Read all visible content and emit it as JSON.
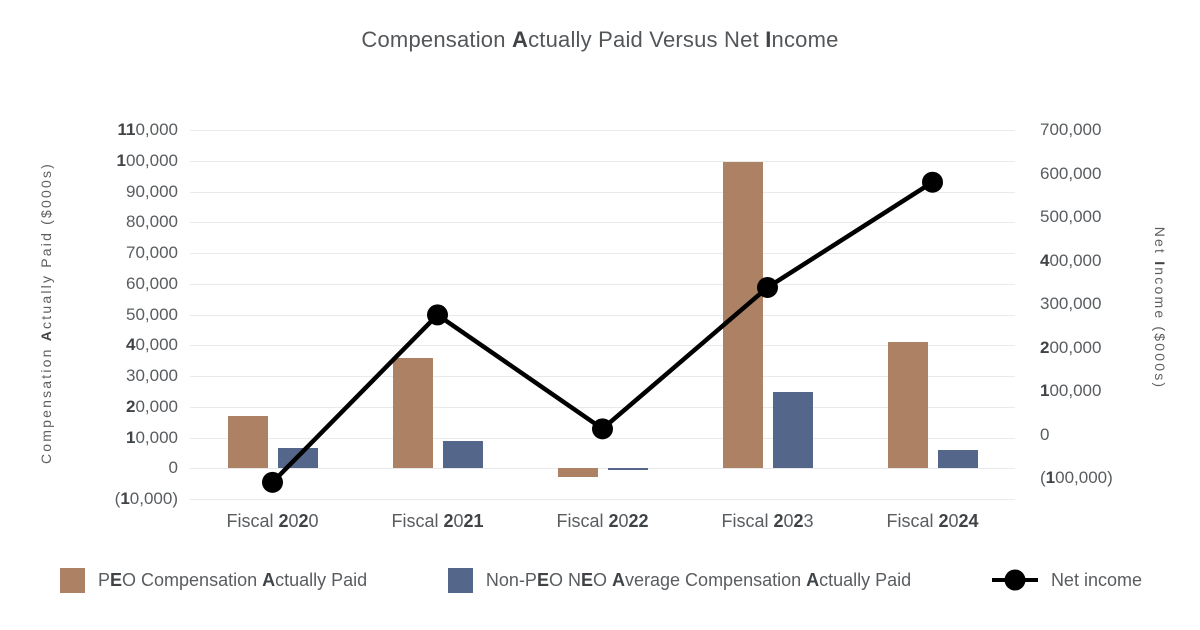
{
  "chart_data": {
    "type": "combo-bar-line",
    "title": "Compensation Actually Paid Versus Net Income",
    "categories": [
      "Fiscal 2020",
      "Fiscal 2021",
      "Fiscal 2022",
      "Fiscal 2023",
      "Fiscal 2024"
    ],
    "series": [
      {
        "name": "PEO Compensation Actually Paid",
        "type": "bar",
        "axis": "left",
        "color": "#ac8164",
        "values": [
          17000,
          36000,
          -2800,
          99500,
          41000
        ]
      },
      {
        "name": "Non-PEO NEO Average Compensation Actually Paid",
        "type": "bar",
        "axis": "left",
        "color": "#54678a",
        "values": [
          6500,
          9000,
          -700,
          24800,
          6000
        ]
      },
      {
        "name": "Net income",
        "type": "line",
        "axis": "right",
        "color": "#000000",
        "values": [
          -110000,
          275000,
          13000,
          338000,
          580000
        ]
      }
    ],
    "left_axis": {
      "title": "Compensation Actually Paid ($000s)",
      "min": -10000,
      "max": 110000,
      "tick_labels": [
        "110,000",
        "100,000",
        "90,000",
        "80,000",
        "70,000",
        "60,000",
        "50,000",
        "40,000",
        "30,000",
        "20,000",
        "10,000",
        "0",
        "(10,000)"
      ]
    },
    "right_axis": {
      "title": "Net Income ($000s)",
      "min": -100000,
      "max": 700000,
      "tick_labels": [
        "700,000",
        "600,000",
        "500,000",
        "400,000",
        "300,000",
        "200,000",
        "100,000",
        "0",
        "(100,000)"
      ]
    },
    "grid": true,
    "legend_position": "bottom",
    "text_color": "#595d60",
    "gridline_color": "#e9eaeb"
  }
}
